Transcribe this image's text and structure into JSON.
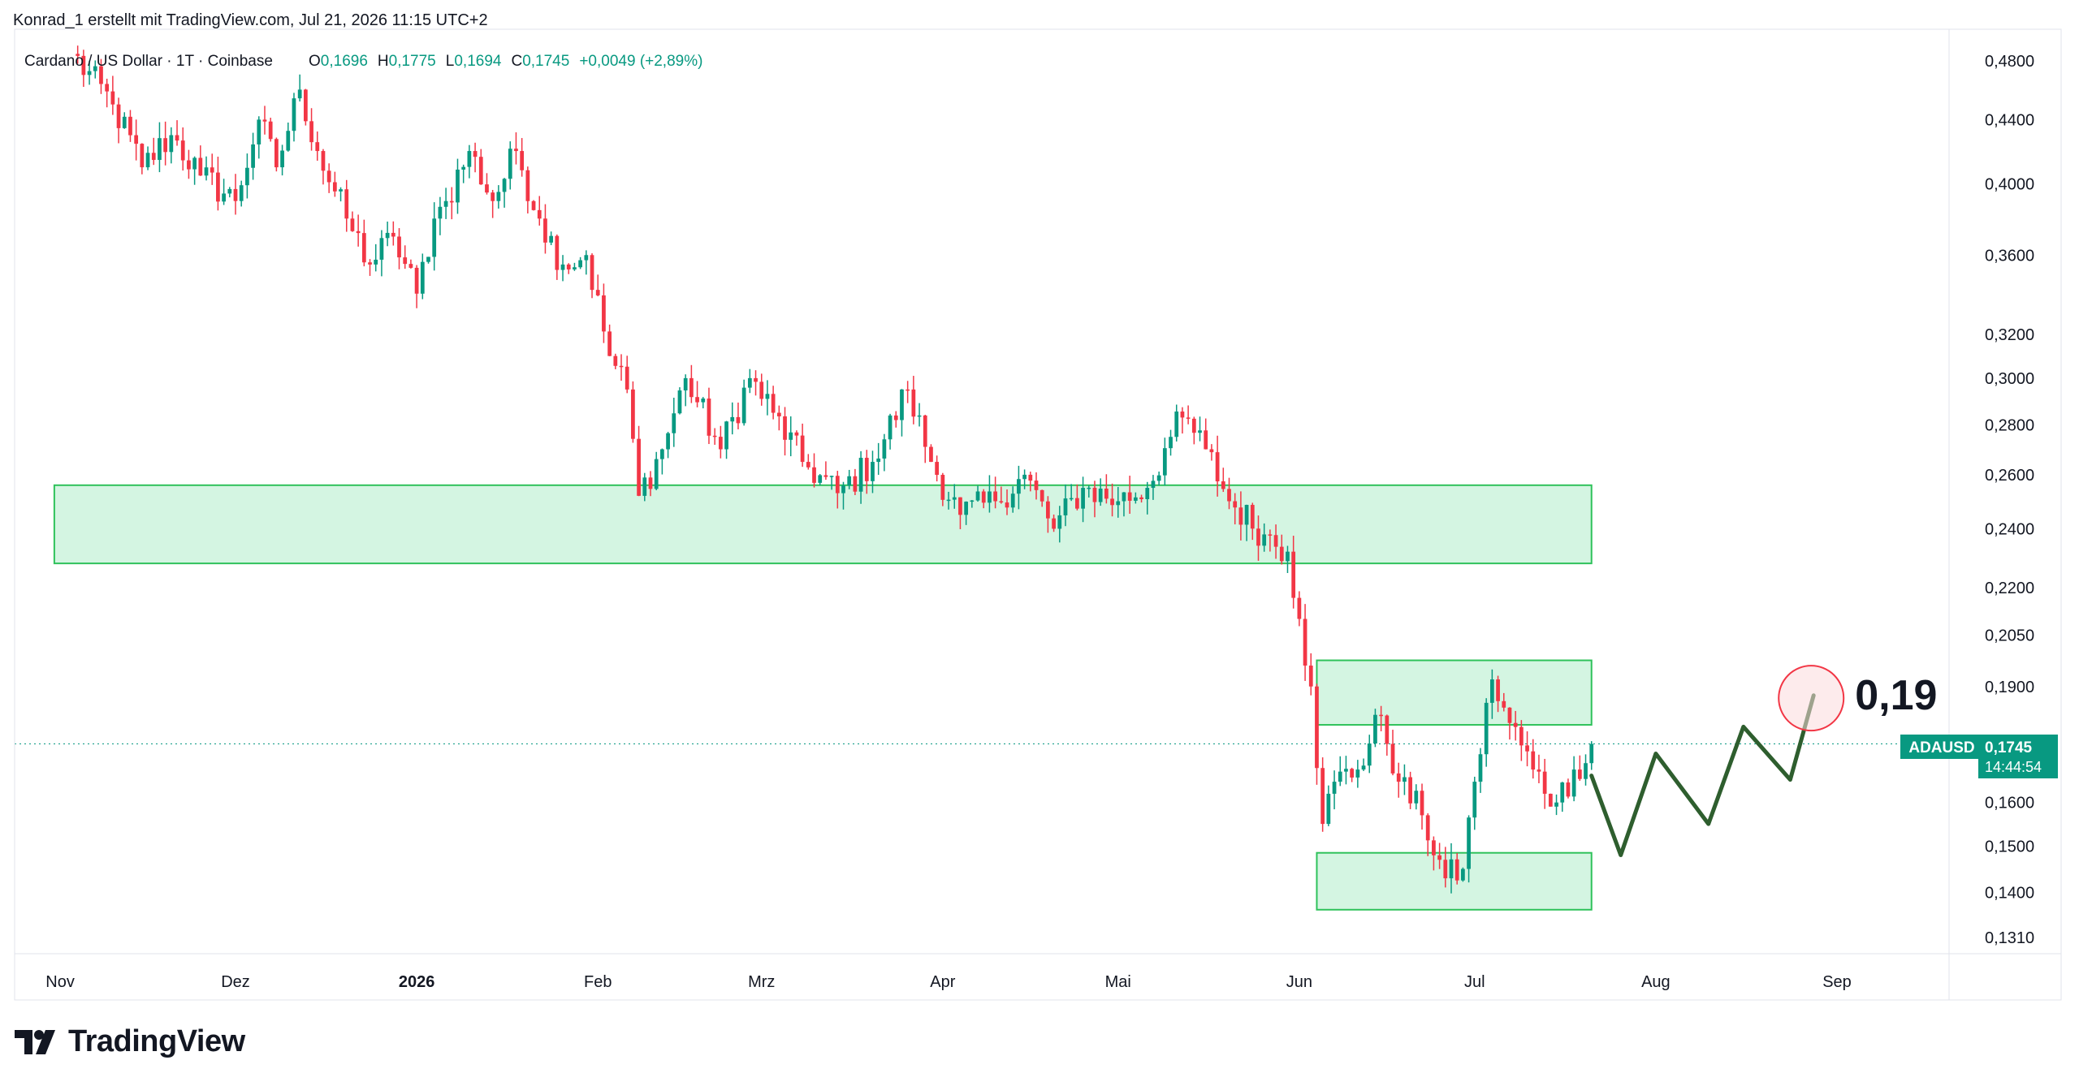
{
  "header": {
    "attribution": "Konrad_1 erstellt mit TradingView.com, Jul 21, 2026 11:15 UTC+2"
  },
  "legend": {
    "symbol": "Cardano / US Dollar · 1T · Coinbase",
    "open_label": "O",
    "open": "0,1696",
    "high_label": "H",
    "high": "0,1775",
    "low_label": "L",
    "low": "0,1694",
    "close_label": "C",
    "close": "0,1745",
    "change": "+0,0049 (+2,89%)"
  },
  "price_tag": {
    "symbol": "ADAUSD",
    "price": "0,1745",
    "countdown": "14:44:54"
  },
  "annotation": {
    "target": "0,19"
  },
  "logo": {
    "text": "TradingView"
  },
  "colors": {
    "up": "#089981",
    "down": "#f23645",
    "zone_fill": "#d4f5e2",
    "zone_border": "#2fc25b",
    "projection": "#2e5e2e",
    "circle": "#f23645",
    "tag_bg": "#089981"
  },
  "chart_data": {
    "type": "candlestick",
    "y_scale": "log",
    "ylim": [
      0.127,
      0.49
    ],
    "y_ticks": [
      {
        "value": 0.48,
        "label": "0,4800"
      },
      {
        "value": 0.44,
        "label": "0,4400"
      },
      {
        "value": 0.4,
        "label": "0,4000"
      },
      {
        "value": 0.36,
        "label": "0,3600"
      },
      {
        "value": 0.32,
        "label": "0,3200"
      },
      {
        "value": 0.3,
        "label": "0,3000"
      },
      {
        "value": 0.28,
        "label": "0,2800"
      },
      {
        "value": 0.26,
        "label": "0,2600"
      },
      {
        "value": 0.24,
        "label": "0,2400"
      },
      {
        "value": 0.22,
        "label": "0,2200"
      },
      {
        "value": 0.205,
        "label": "0,2050"
      },
      {
        "value": 0.19,
        "label": "0,1900"
      },
      {
        "value": 0.16,
        "label": "0,1600"
      },
      {
        "value": 0.15,
        "label": "0,1500"
      },
      {
        "value": 0.14,
        "label": "0,1400"
      },
      {
        "value": 0.131,
        "label": "0,1310"
      }
    ],
    "x_ticks": [
      {
        "date": "2025-11-01",
        "label": "Nov",
        "bold": false
      },
      {
        "date": "2025-12-01",
        "label": "Dez",
        "bold": false
      },
      {
        "date": "2026-01-01",
        "label": "2026",
        "bold": true
      },
      {
        "date": "2026-02-01",
        "label": "Feb",
        "bold": false
      },
      {
        "date": "2026-03-01",
        "label": "Mrz",
        "bold": false
      },
      {
        "date": "2026-04-01",
        "label": "Apr",
        "bold": false
      },
      {
        "date": "2026-05-01",
        "label": "Mai",
        "bold": false
      },
      {
        "date": "2026-06-01",
        "label": "Jun",
        "bold": false
      },
      {
        "date": "2026-07-01",
        "label": "Jul",
        "bold": false
      },
      {
        "date": "2026-08-01",
        "label": "Aug",
        "bold": false
      },
      {
        "date": "2026-09-01",
        "label": "Sep",
        "bold": false
      }
    ],
    "xlim": [
      "2025-10-31",
      "2026-09-25"
    ],
    "last_price": 0.1745,
    "zones": [
      {
        "from": "2025-10-31",
        "to": "2026-07-21",
        "low": 0.228,
        "high": 0.256
      },
      {
        "from": "2026-06-04",
        "to": "2026-07-21",
        "low": 0.1795,
        "high": 0.1975
      },
      {
        "from": "2026-06-04",
        "to": "2026-07-21",
        "low": 0.1365,
        "high": 0.1485
      }
    ],
    "projection": [
      {
        "date": "2026-07-21",
        "price": 0.1665
      },
      {
        "date": "2026-07-26",
        "price": 0.148
      },
      {
        "date": "2026-08-01",
        "price": 0.172
      },
      {
        "date": "2026-08-10",
        "price": 0.155
      },
      {
        "date": "2026-08-16",
        "price": 0.179
      },
      {
        "date": "2026-08-24",
        "price": 0.1655
      },
      {
        "date": "2026-08-28",
        "price": 0.1875
      }
    ],
    "target_circle": {
      "date": "2026-08-28",
      "price": 0.189
    },
    "keypoints": [
      {
        "date": "2025-11-03",
        "price": 0.485
      },
      {
        "date": "2025-11-10",
        "price": 0.45
      },
      {
        "date": "2025-11-15",
        "price": 0.41
      },
      {
        "date": "2025-11-20",
        "price": 0.43
      },
      {
        "date": "2025-11-25",
        "price": 0.405
      },
      {
        "date": "2025-12-01",
        "price": 0.39
      },
      {
        "date": "2025-12-05",
        "price": 0.44
      },
      {
        "date": "2025-12-08",
        "price": 0.41
      },
      {
        "date": "2025-12-12",
        "price": 0.46
      },
      {
        "date": "2025-12-15",
        "price": 0.42
      },
      {
        "date": "2025-12-20",
        "price": 0.38
      },
      {
        "date": "2025-12-24",
        "price": 0.355
      },
      {
        "date": "2025-12-28",
        "price": 0.37
      },
      {
        "date": "2026-01-01",
        "price": 0.34
      },
      {
        "date": "2026-01-04",
        "price": 0.38
      },
      {
        "date": "2026-01-06",
        "price": 0.39
      },
      {
        "date": "2026-01-10",
        "price": 0.42
      },
      {
        "date": "2026-01-14",
        "price": 0.39
      },
      {
        "date": "2026-01-18",
        "price": 0.42
      },
      {
        "date": "2026-01-22",
        "price": 0.38
      },
      {
        "date": "2026-01-26",
        "price": 0.355
      },
      {
        "date": "2026-01-30",
        "price": 0.36
      },
      {
        "date": "2026-02-03",
        "price": 0.31
      },
      {
        "date": "2026-02-06",
        "price": 0.295
      },
      {
        "date": "2026-02-08",
        "price": 0.252
      },
      {
        "date": "2026-02-12",
        "price": 0.27
      },
      {
        "date": "2026-02-16",
        "price": 0.3
      },
      {
        "date": "2026-02-22",
        "price": 0.27
      },
      {
        "date": "2026-02-27",
        "price": 0.3
      },
      {
        "date": "2026-03-03",
        "price": 0.285
      },
      {
        "date": "2026-03-08",
        "price": 0.265
      },
      {
        "date": "2026-03-14",
        "price": 0.253
      },
      {
        "date": "2026-03-20",
        "price": 0.265
      },
      {
        "date": "2026-03-26",
        "price": 0.295
      },
      {
        "date": "2026-03-30",
        "price": 0.265
      },
      {
        "date": "2026-04-04",
        "price": 0.245
      },
      {
        "date": "2026-04-10",
        "price": 0.25
      },
      {
        "date": "2026-04-15",
        "price": 0.26
      },
      {
        "date": "2026-04-20",
        "price": 0.24
      },
      {
        "date": "2026-04-25",
        "price": 0.255
      },
      {
        "date": "2026-05-01",
        "price": 0.25
      },
      {
        "date": "2026-05-06",
        "price": 0.255
      },
      {
        "date": "2026-05-10",
        "price": 0.275
      },
      {
        "date": "2026-05-12",
        "price": 0.283
      },
      {
        "date": "2026-05-16",
        "price": 0.27
      },
      {
        "date": "2026-05-20",
        "price": 0.25
      },
      {
        "date": "2026-05-26",
        "price": 0.238
      },
      {
        "date": "2026-05-30",
        "price": 0.232
      },
      {
        "date": "2026-06-01",
        "price": 0.21
      },
      {
        "date": "2026-06-03",
        "price": 0.19
      },
      {
        "date": "2026-06-05",
        "price": 0.155
      },
      {
        "date": "2026-06-07",
        "price": 0.165
      },
      {
        "date": "2026-06-11",
        "price": 0.168
      },
      {
        "date": "2026-06-15",
        "price": 0.182
      },
      {
        "date": "2026-06-18",
        "price": 0.165
      },
      {
        "date": "2026-06-22",
        "price": 0.157
      },
      {
        "date": "2026-06-26",
        "price": 0.143
      },
      {
        "date": "2026-06-29",
        "price": 0.145
      },
      {
        "date": "2026-07-01",
        "price": 0.165
      },
      {
        "date": "2026-07-04",
        "price": 0.192
      },
      {
        "date": "2026-07-07",
        "price": 0.18
      },
      {
        "date": "2026-07-11",
        "price": 0.168
      },
      {
        "date": "2026-07-15",
        "price": 0.16
      },
      {
        "date": "2026-07-18",
        "price": 0.168
      },
      {
        "date": "2026-07-20",
        "price": 0.1696
      },
      {
        "date": "2026-07-21",
        "price": 0.1745
      }
    ]
  }
}
